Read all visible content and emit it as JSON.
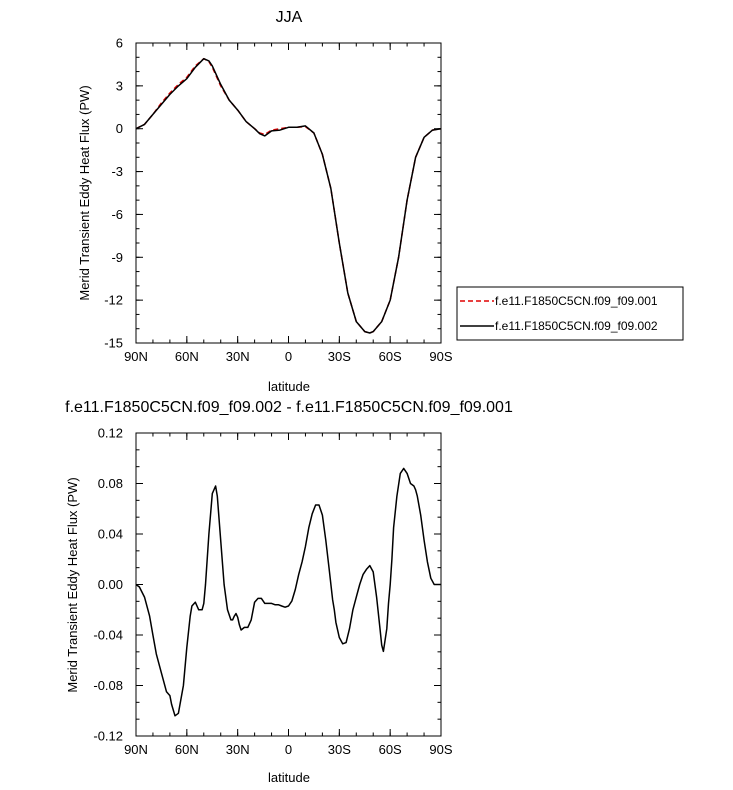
{
  "chart_data": [
    {
      "type": "line",
      "title": "JJA",
      "xlabel": "latitude",
      "ylabel": "Merid Transient Eddy Heat Flux (PW)",
      "xlim": [
        90,
        -90
      ],
      "ylim": [
        -15,
        6
      ],
      "x_ticks": [
        {
          "value": 90,
          "label": "90N"
        },
        {
          "value": 60,
          "label": "60N"
        },
        {
          "value": 30,
          "label": "30N"
        },
        {
          "value": 0,
          "label": "0"
        },
        {
          "value": -30,
          "label": "30S"
        },
        {
          "value": -60,
          "label": "60S"
        },
        {
          "value": -90,
          "label": "90S"
        }
      ],
      "y_ticks": [
        {
          "value": 6,
          "label": "6"
        },
        {
          "value": 3,
          "label": "3"
        },
        {
          "value": 0,
          "label": "0"
        },
        {
          "value": -3,
          "label": "-3"
        },
        {
          "value": -6,
          "label": "-6"
        },
        {
          "value": -9,
          "label": "-9"
        },
        {
          "value": -12,
          "label": "-12"
        },
        {
          "value": -15,
          "label": "-15"
        }
      ],
      "grid": false,
      "legend": {
        "placement": "right"
      },
      "series": [
        {
          "name": "f.e11.F1850C5CN.f09_f09.001",
          "color": "#e00000",
          "dash": "dashed",
          "x": [
            90,
            85,
            80,
            75,
            70,
            65,
            60,
            55,
            50,
            47,
            45,
            40,
            35,
            30,
            25,
            20,
            17,
            14,
            10,
            5,
            0,
            -5,
            -10,
            -15,
            -20,
            -25,
            -30,
            -35,
            -40,
            -45,
            -48,
            -50,
            -55,
            -60,
            -65,
            -70,
            -75,
            -80,
            -85,
            -90
          ],
          "y": [
            0,
            0.3,
            1.0,
            1.8,
            2.5,
            3.1,
            3.6,
            4.4,
            4.9,
            4.7,
            4.3,
            3.0,
            2.0,
            1.3,
            0.5,
            0,
            -0.3,
            -0.4,
            -0.1,
            0,
            0.1,
            0.1,
            0.15,
            -0.3,
            -1.8,
            -4.2,
            -8.0,
            -11.5,
            -13.5,
            -14.2,
            -14.3,
            -14.2,
            -13.5,
            -12.0,
            -9.0,
            -5.0,
            -2.0,
            -0.6,
            -0.1,
            0
          ]
        },
        {
          "name": "f.e11.F1850C5CN.f09_f09.002",
          "color": "#000000",
          "dash": "solid",
          "x": [
            90,
            85,
            80,
            75,
            70,
            65,
            60,
            55,
            50,
            47,
            45,
            40,
            35,
            30,
            25,
            20,
            17,
            14,
            10,
            5,
            0,
            -5,
            -10,
            -15,
            -20,
            -25,
            -30,
            -35,
            -40,
            -45,
            -48,
            -50,
            -55,
            -60,
            -65,
            -70,
            -75,
            -80,
            -85,
            -90
          ],
          "y": [
            0,
            0.3,
            1.0,
            1.7,
            2.4,
            3.0,
            3.5,
            4.3,
            4.9,
            4.75,
            4.4,
            3.1,
            2.0,
            1.3,
            0.5,
            0,
            -0.35,
            -0.5,
            -0.15,
            -0.1,
            0.1,
            0.1,
            0.2,
            -0.3,
            -1.8,
            -4.2,
            -8.0,
            -11.5,
            -13.5,
            -14.2,
            -14.3,
            -14.2,
            -13.5,
            -12.0,
            -9.0,
            -5.0,
            -2.0,
            -0.6,
            -0.1,
            0
          ]
        }
      ]
    },
    {
      "type": "line",
      "title": "f.e11.F1850C5CN.f09_f09.002 - f.e11.F1850C5CN.f09_f09.001",
      "xlabel": "latitude",
      "ylabel": "Merid Transient Eddy Heat Flux (PW)",
      "xlim": [
        90,
        -90
      ],
      "ylim": [
        -0.12,
        0.12
      ],
      "x_ticks": [
        {
          "value": 90,
          "label": "90N"
        },
        {
          "value": 60,
          "label": "60N"
        },
        {
          "value": 30,
          "label": "30N"
        },
        {
          "value": 0,
          "label": "0"
        },
        {
          "value": -30,
          "label": "30S"
        },
        {
          "value": -60,
          "label": "60S"
        },
        {
          "value": -90,
          "label": "90S"
        }
      ],
      "y_ticks": [
        {
          "value": 0.12,
          "label": "0.12"
        },
        {
          "value": 0.08,
          "label": "0.08"
        },
        {
          "value": 0.04,
          "label": "0.04"
        },
        {
          "value": 0.0,
          "label": "0.00"
        },
        {
          "value": -0.04,
          "label": "-0.04"
        },
        {
          "value": -0.08,
          "label": "-0.08"
        },
        {
          "value": -0.12,
          "label": "-0.12"
        }
      ],
      "grid": false,
      "series": [
        {
          "color": "#000000",
          "dash": "solid",
          "x": [
            90,
            88,
            85,
            82,
            80,
            78,
            75,
            72,
            70,
            69,
            67,
            65,
            62,
            60,
            58,
            57,
            55,
            53,
            51,
            50,
            49,
            47,
            45,
            43,
            42,
            40,
            38,
            36,
            34,
            33,
            32,
            31,
            30,
            29,
            28,
            26,
            24,
            22,
            20,
            18,
            16,
            14,
            12,
            10,
            8,
            6,
            4,
            2,
            0,
            -2,
            -4,
            -6,
            -8,
            -10,
            -12,
            -14,
            -16,
            -18,
            -20,
            -22,
            -24,
            -26,
            -27,
            -28,
            -30,
            -32,
            -34,
            -36,
            -38,
            -40,
            -42,
            -44,
            -46,
            -48,
            -50,
            -52,
            -54,
            -55,
            -56,
            -58,
            -59,
            -60,
            -61,
            -62,
            -64,
            -66,
            -68,
            -70,
            -72,
            -74,
            -75,
            -76,
            -78,
            -80,
            -82,
            -84,
            -86,
            -88,
            -90
          ],
          "y": [
            0,
            -0.002,
            -0.01,
            -0.025,
            -0.04,
            -0.055,
            -0.07,
            -0.085,
            -0.088,
            -0.095,
            -0.104,
            -0.102,
            -0.08,
            -0.05,
            -0.025,
            -0.017,
            -0.014,
            -0.02,
            -0.02,
            -0.015,
            0.0,
            0.04,
            0.072,
            0.078,
            0.07,
            0.035,
            0.0,
            -0.02,
            -0.028,
            -0.028,
            -0.025,
            -0.023,
            -0.026,
            -0.032,
            -0.036,
            -0.034,
            -0.034,
            -0.028,
            -0.014,
            -0.011,
            -0.011,
            -0.015,
            -0.015,
            -0.015,
            -0.016,
            -0.016,
            -0.017,
            -0.018,
            -0.017,
            -0.013,
            -0.004,
            0.008,
            0.018,
            0.03,
            0.045,
            0.056,
            0.063,
            0.063,
            0.055,
            0.035,
            0.012,
            -0.012,
            -0.02,
            -0.03,
            -0.042,
            -0.047,
            -0.046,
            -0.035,
            -0.02,
            -0.01,
            0.0,
            0.008,
            0.012,
            0.015,
            0.01,
            -0.01,
            -0.035,
            -0.048,
            -0.053,
            -0.035,
            -0.015,
            0.0,
            0.02,
            0.045,
            0.07,
            0.088,
            0.092,
            0.088,
            0.08,
            0.078,
            0.075,
            0.07,
            0.055,
            0.035,
            0.018,
            0.005,
            0.0,
            0.0,
            0.0
          ]
        }
      ]
    }
  ]
}
